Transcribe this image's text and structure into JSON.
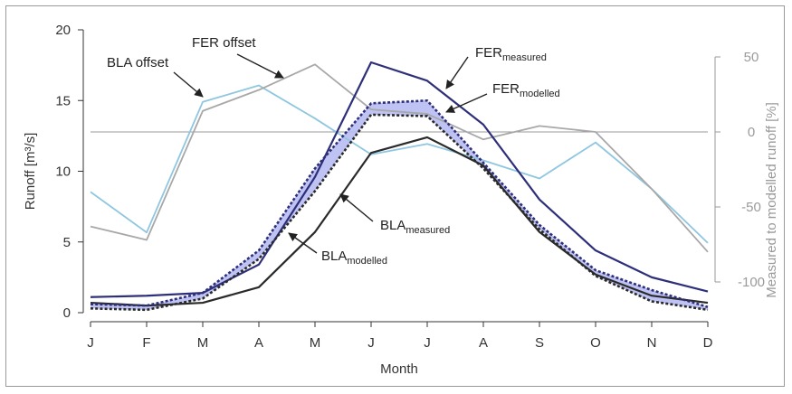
{
  "chart_data": {
    "type": "line",
    "xlabel": "Month",
    "ylabel": "Runoff [m³/s]",
    "y2label": "Measured to modelled runoff [%]",
    "categories": [
      "J",
      "F",
      "M",
      "A",
      "M",
      "J",
      "J",
      "A",
      "S",
      "O",
      "N",
      "D"
    ],
    "ylim": [
      0,
      20
    ],
    "yticks": [
      0,
      5,
      10,
      15,
      20
    ],
    "y2lim": [
      -100,
      50
    ],
    "y2ticks": [
      50,
      0,
      -50,
      -100
    ],
    "grid": false,
    "legend": "none",
    "series": [
      {
        "id": "fer_measured",
        "axis": "left",
        "color": "#2e2f7a",
        "dash": false,
        "values": [
          1.1,
          1.2,
          1.4,
          3.4,
          9.6,
          17.7,
          16.4,
          13.3,
          8.0,
          4.4,
          2.5,
          1.5
        ]
      },
      {
        "id": "fer_modelled",
        "axis": "left",
        "color": "#2e2f7a",
        "dash": true,
        "values": [
          0.6,
          0.5,
          1.4,
          4.4,
          10.2,
          14.8,
          15.0,
          10.6,
          6.2,
          3.0,
          1.6,
          0.4
        ]
      },
      {
        "id": "bla_measured",
        "axis": "left",
        "color": "#2a2a2a",
        "dash": false,
        "values": [
          0.7,
          0.5,
          0.7,
          1.8,
          5.7,
          11.3,
          12.4,
          10.4,
          5.7,
          2.7,
          1.2,
          0.7
        ]
      },
      {
        "id": "bla_modelled",
        "axis": "left",
        "color": "#2a2a2a",
        "dash": true,
        "values": [
          0.3,
          0.2,
          1.0,
          3.8,
          8.6,
          14.0,
          13.9,
          10.2,
          5.9,
          2.6,
          0.8,
          0.2
        ]
      },
      {
        "id": "bla_offset",
        "axis": "right",
        "color": "#8fc6e0",
        "dash": false,
        "values": [
          -40,
          -67,
          20,
          31,
          9,
          -15,
          -8,
          -19,
          -31,
          -7,
          -38,
          -74
        ]
      },
      {
        "id": "fer_offset",
        "axis": "right",
        "color": "#a8a8a8",
        "dash": false,
        "values": [
          -63,
          -72,
          14,
          28,
          45,
          15,
          12,
          -5,
          4,
          0,
          -38,
          -80
        ]
      }
    ],
    "bands": [
      {
        "between": [
          "fer_modelled",
          "bla_modelled"
        ],
        "color": "#b8bcf2"
      }
    ],
    "reference_line": {
      "axis": "right",
      "value": 0,
      "color": "#9a9a9a"
    },
    "annotations": [
      {
        "id": "fer_offset",
        "text": "FER offset",
        "sub": ""
      },
      {
        "id": "bla_offset",
        "text": "BLA offset",
        "sub": ""
      },
      {
        "id": "fer_measured",
        "text": "FER",
        "sub": "measured"
      },
      {
        "id": "fer_modelled",
        "text": "FER",
        "sub": "modelled"
      },
      {
        "id": "bla_measured",
        "text": "BLA",
        "sub": "measured"
      },
      {
        "id": "bla_modelled",
        "text": "BLA",
        "sub": "modelled"
      }
    ]
  }
}
